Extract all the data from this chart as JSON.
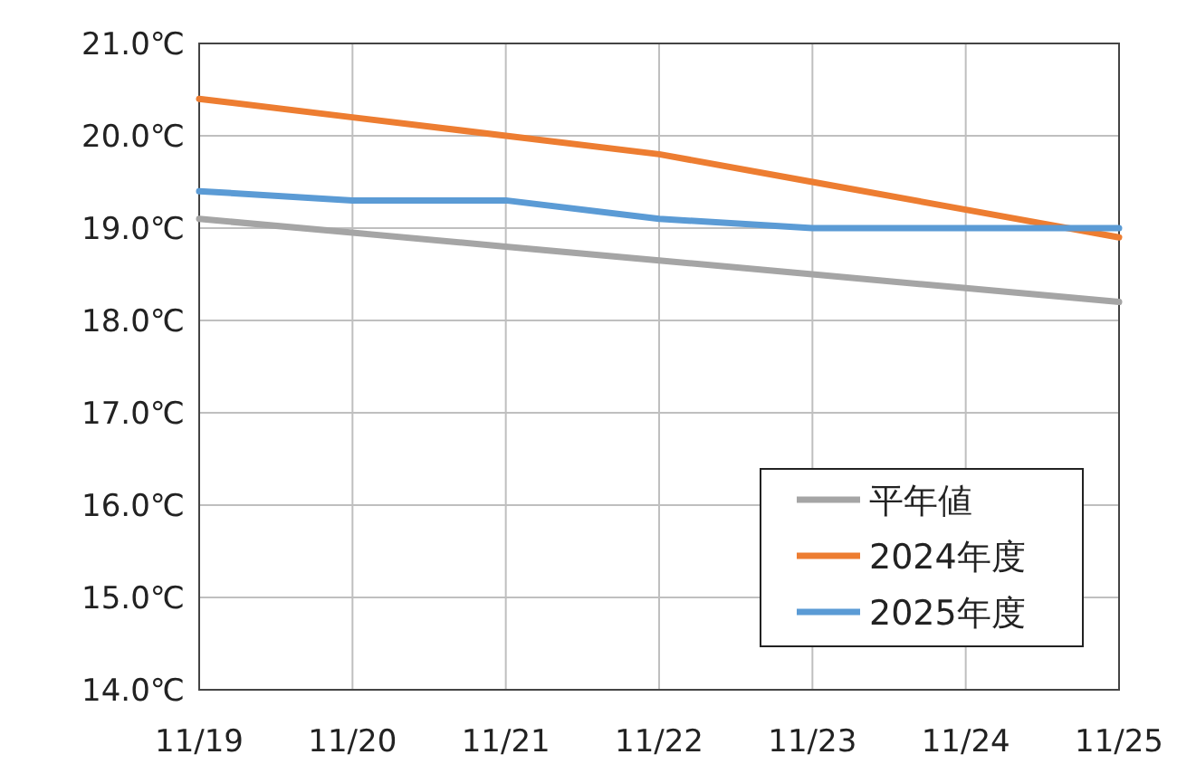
{
  "chart_data": {
    "type": "line",
    "categories": [
      "11/19",
      "11/20",
      "11/21",
      "11/22",
      "11/23",
      "11/24",
      "11/25"
    ],
    "series": [
      {
        "name": "平年値",
        "color": "#a5a5a5",
        "values": [
          19.1,
          18.95,
          18.8,
          18.65,
          18.5,
          18.35,
          18.2
        ]
      },
      {
        "name": "2024年度",
        "color": "#ed7d31",
        "values": [
          20.4,
          20.2,
          20.0,
          19.8,
          19.5,
          19.2,
          18.9
        ]
      },
      {
        "name": "2025年度",
        "color": "#5b9bd5",
        "values": [
          19.4,
          19.3,
          19.3,
          19.1,
          19.0,
          19.0,
          19.0
        ]
      }
    ],
    "ylim": [
      14,
      21
    ],
    "yticks": [
      {
        "value": 14,
        "label": "14.0℃"
      },
      {
        "value": 15,
        "label": "15.0℃"
      },
      {
        "value": 16,
        "label": "16.0℃"
      },
      {
        "value": 17,
        "label": "17.0℃"
      },
      {
        "value": 18,
        "label": "18.0℃"
      },
      {
        "value": 19,
        "label": "19.0℃"
      },
      {
        "value": 20,
        "label": "20.0℃"
      },
      {
        "value": 21,
        "label": "21.0℃"
      }
    ],
    "grid": true,
    "legend": "bottom right",
    "marker": "none",
    "line_style": "solid"
  }
}
